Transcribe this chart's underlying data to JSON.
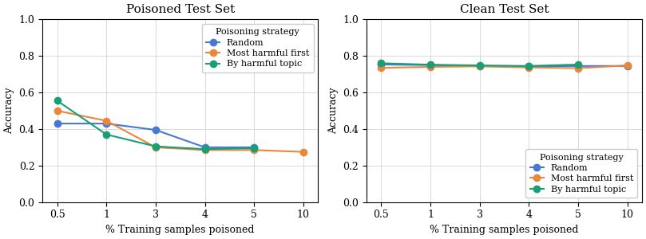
{
  "x_positions": [
    0,
    1,
    2,
    3,
    4,
    5
  ],
  "x_labels": [
    "0.5",
    "1",
    "3",
    "4",
    "5",
    "10"
  ],
  "poisoned": {
    "random": [
      0.43,
      0.43,
      0.395,
      0.3,
      0.3,
      null
    ],
    "harmful_first": [
      0.5,
      0.445,
      0.3,
      0.285,
      0.285,
      0.275
    ],
    "by_topic": [
      0.555,
      0.37,
      0.305,
      0.29,
      0.295,
      null
    ]
  },
  "clean": {
    "random": [
      0.753,
      0.75,
      0.745,
      0.743,
      0.745,
      0.745
    ],
    "harmful_first": [
      0.735,
      0.74,
      0.743,
      0.737,
      0.733,
      0.748
    ],
    "by_topic": [
      0.76,
      0.752,
      0.748,
      0.745,
      0.753,
      null
    ]
  },
  "colors": {
    "random": "#4878cf",
    "harmful_first": "#e8883a",
    "by_topic": "#1a9e77"
  },
  "legend_labels": [
    "Random",
    "Most harmful first",
    "By harmful topic"
  ],
  "legend_title": "Poisoning strategy",
  "xlabel": "% Training samples poisoned",
  "ylabel": "Accuracy",
  "title_poisoned": "Poisoned Test Set",
  "title_clean": "Clean Test Set",
  "ylim": [
    0.0,
    1.0
  ],
  "yticks": [
    0.0,
    0.2,
    0.4,
    0.6,
    0.8,
    1.0
  ],
  "marker": "o",
  "markersize": 6,
  "linewidth": 1.5,
  "font_family": "DejaVu Serif"
}
